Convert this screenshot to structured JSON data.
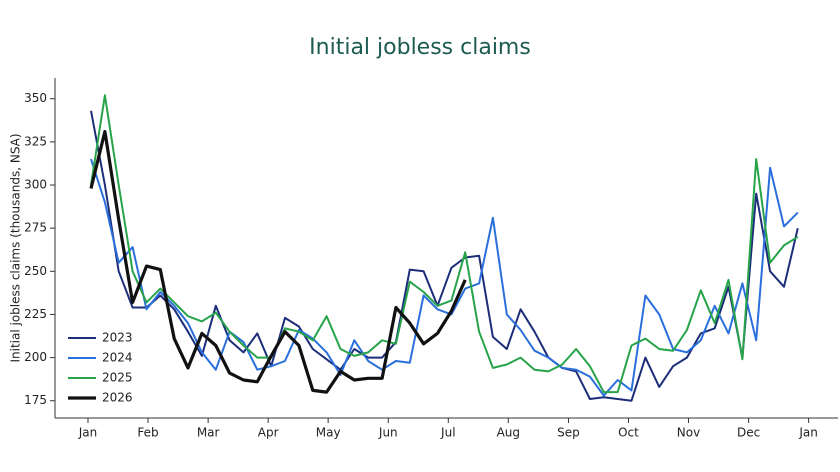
{
  "chart_data": {
    "type": "line",
    "title": "Initial jobless claims",
    "y_label": "Initial jobless claims (thousands, NSA)",
    "x": [
      1,
      2,
      3,
      4,
      5,
      6,
      7,
      8,
      9,
      10,
      11,
      12,
      13,
      14,
      15,
      16,
      17,
      18,
      19,
      20,
      21,
      22,
      23,
      24,
      25,
      26,
      27,
      28,
      29,
      30,
      31,
      32,
      33,
      34,
      35,
      36,
      37,
      38,
      39,
      40,
      41,
      42,
      43,
      44,
      45,
      46,
      47,
      48,
      49,
      50,
      51,
      52
    ],
    "xlim": [
      -1.6,
      54.9
    ],
    "xticks": [
      {
        "value": 0.78,
        "label": "Jan"
      },
      {
        "value": 5.11,
        "label": "Feb"
      },
      {
        "value": 9.45,
        "label": "Mar"
      },
      {
        "value": 13.78,
        "label": "Apr"
      },
      {
        "value": 18.11,
        "label": "May"
      },
      {
        "value": 22.45,
        "label": "Jun"
      },
      {
        "value": 26.78,
        "label": "Jul"
      },
      {
        "value": 31.11,
        "label": "Aug"
      },
      {
        "value": 35.45,
        "label": "Sep"
      },
      {
        "value": 39.78,
        "label": "Oct"
      },
      {
        "value": 44.11,
        "label": "Nov"
      },
      {
        "value": 48.45,
        "label": "Dec"
      },
      {
        "value": 52.78,
        "label": "Jan"
      }
    ],
    "ylim": [
      165,
      362
    ],
    "yticks": [
      175,
      200,
      225,
      250,
      275,
      300,
      325,
      350
    ],
    "legend": "lower left",
    "series": [
      {
        "name": "2023",
        "color": "#1c2e7a",
        "width": 2,
        "values": [
          343,
          300,
          250,
          229,
          229,
          236,
          228,
          215,
          201,
          230,
          210,
          203,
          214,
          195,
          223,
          218,
          205,
          199,
          193,
          205,
          200,
          200,
          209,
          251,
          250,
          230,
          252,
          258,
          259,
          212,
          205,
          228,
          215,
          200,
          194,
          192,
          176,
          177,
          176,
          175,
          200,
          183,
          195,
          200,
          214,
          217,
          241,
          200,
          295,
          250,
          241,
          275
        ]
      },
      {
        "name": "2024",
        "color": "#2a6fdb",
        "width": 2,
        "values": [
          315,
          290,
          255,
          264,
          228,
          238,
          230,
          220,
          203,
          193,
          215,
          209,
          193,
          195,
          198,
          216,
          211,
          203,
          190,
          210,
          198,
          193,
          198,
          197,
          236,
          228,
          225,
          240,
          243,
          281,
          225,
          216,
          204,
          200,
          194,
          193,
          189,
          178,
          187,
          181,
          236,
          225,
          205,
          203,
          210,
          230,
          214,
          243,
          210,
          310,
          276,
          284
        ]
      },
      {
        "name": "2025",
        "color": "#27a34a",
        "width": 2,
        "values": [
          300,
          352,
          300,
          250,
          232,
          240,
          232,
          224,
          221,
          226,
          215,
          207,
          200,
          200,
          217,
          215,
          210,
          224,
          205,
          201,
          203,
          210,
          208,
          244,
          238,
          230,
          233,
          261,
          215,
          194,
          196,
          200,
          193,
          192,
          196,
          205,
          195,
          180,
          180,
          207,
          211,
          205,
          204,
          216,
          239,
          220,
          245,
          199,
          315,
          255,
          265,
          270
        ]
      },
      {
        "name": "2026",
        "color": "#111111",
        "width": 3.2,
        "values": [
          298,
          331,
          280,
          232,
          253,
          251,
          211,
          194,
          214,
          207,
          191,
          187,
          186,
          201,
          215,
          207,
          181,
          180,
          192,
          187,
          188,
          188,
          229,
          220,
          208,
          214,
          227,
          245,
          null,
          null,
          null,
          null,
          null,
          null,
          null,
          null,
          null,
          null,
          null,
          null,
          null,
          null,
          null,
          null,
          null,
          null,
          null,
          null,
          null,
          null,
          null,
          null
        ]
      }
    ]
  }
}
